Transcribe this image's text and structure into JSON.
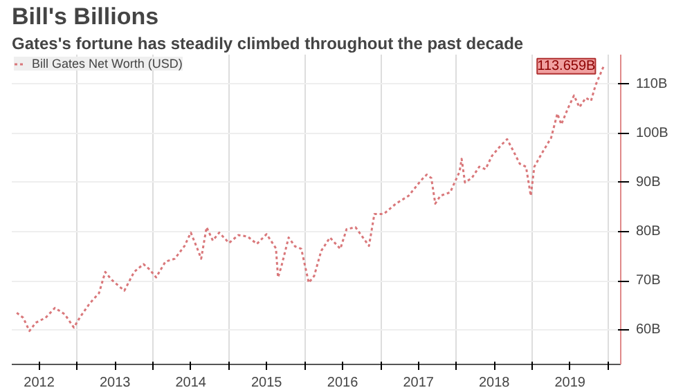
{
  "chart_data": {
    "type": "line",
    "title": "Bill's Billions",
    "subtitle": "Gates's fortune has steadily climbed throughout the past decade",
    "x": [
      "2012-03-15",
      "2012-04-15",
      "2012-05-15",
      "2012-06-15",
      "2012-08-01",
      "2012-09-15",
      "2012-11-01",
      "2012-12-15",
      "2013-01-15",
      "2013-03-01",
      "2013-04-15",
      "2013-05-15",
      "2013-06-15",
      "2013-07-15",
      "2013-08-15",
      "2013-10-01",
      "2013-11-15",
      "2013-12-15",
      "2014-01-15",
      "2014-03-01",
      "2014-04-15",
      "2014-06-01",
      "2014-07-01",
      "2014-08-01",
      "2014-08-20",
      "2014-09-15",
      "2014-10-15",
      "2014-11-15",
      "2015-01-01",
      "2015-02-15",
      "2015-04-01",
      "2015-05-15",
      "2015-07-01",
      "2015-08-15",
      "2015-08-25",
      "2015-09-10",
      "2015-10-15",
      "2015-11-15",
      "2015-12-15",
      "2016-01-20",
      "2016-02-15",
      "2016-03-20",
      "2016-05-01",
      "2016-06-20",
      "2016-07-20",
      "2016-09-01",
      "2016-11-05",
      "2016-12-01",
      "2017-01-15",
      "2017-03-15",
      "2017-05-15",
      "2017-07-15",
      "2017-08-10",
      "2017-09-01",
      "2017-09-20",
      "2017-10-15",
      "2017-12-01",
      "2018-01-15",
      "2018-01-25",
      "2018-02-10",
      "2018-03-15",
      "2018-04-20",
      "2018-05-20",
      "2018-06-20",
      "2018-08-01",
      "2018-09-01",
      "2018-10-01",
      "2018-11-01",
      "2018-12-01",
      "2018-12-24",
      "2019-01-10",
      "2019-02-15",
      "2019-04-01",
      "2019-05-01",
      "2019-05-20",
      "2019-06-20",
      "2019-07-20",
      "2019-08-15",
      "2019-09-15",
      "2019-10-10",
      "2019-11-01",
      "2019-12-10"
    ],
    "series": [
      {
        "name": "Bill Gates Net Worth (USD)",
        "color": "#d9777a",
        "values": [
          63.5,
          62.5,
          59.8,
          61.5,
          62.5,
          64.5,
          63.2,
          60.5,
          62.7,
          65.4,
          67.5,
          71.8,
          70.2,
          69.1,
          68,
          71.8,
          73.4,
          72.3,
          70.7,
          73.9,
          74.5,
          77.1,
          79.8,
          76.6,
          74.5,
          80.9,
          78.2,
          79.8,
          77.7,
          79.3,
          79,
          77.5,
          79.5,
          76.6,
          70.7,
          72.9,
          78.8,
          77,
          76.5,
          69.6,
          71,
          76.1,
          78.8,
          76.5,
          80.5,
          80.9,
          77.1,
          83.6,
          83.6,
          85.7,
          87.3,
          90.5,
          91.6,
          90.9,
          85.7,
          87.3,
          88,
          92.2,
          94.8,
          90,
          90.9,
          93.2,
          92.7,
          95.4,
          97.5,
          98.8,
          96.4,
          93.8,
          93.2,
          87.3,
          93.2,
          95.9,
          99.1,
          104,
          101.8,
          105,
          107.7,
          105.3,
          107.2,
          106.6,
          109.8,
          113.659
        ]
      }
    ],
    "xlim": [
      "2012-02-20",
      "2020-03-01"
    ],
    "xticks": [
      {
        "value": "2013-01-01",
        "label": null
      },
      {
        "value": "2014-01-01",
        "label": null
      },
      {
        "value": "2015-01-01",
        "label": null
      },
      {
        "value": "2016-01-01",
        "label": null
      },
      {
        "value": "2017-01-01",
        "label": null
      },
      {
        "value": "2018-01-01",
        "label": null
      },
      {
        "value": "2019-01-01",
        "label": null
      },
      {
        "value": "2020-01-01",
        "label": null
      },
      {
        "value": "2012-07-01",
        "label": "2012"
      },
      {
        "value": "2013-07-01",
        "label": "2013"
      },
      {
        "value": "2014-07-01",
        "label": "2014"
      },
      {
        "value": "2015-07-01",
        "label": "2015"
      },
      {
        "value": "2016-07-01",
        "label": "2016"
      },
      {
        "value": "2017-07-01",
        "label": "2017"
      },
      {
        "value": "2018-07-01",
        "label": "2018"
      },
      {
        "value": "2019-07-01",
        "label": "2019"
      }
    ],
    "ylim": [
      53,
      116
    ],
    "yticks": [
      {
        "value": 60,
        "label": "60B"
      },
      {
        "value": 70,
        "label": "70B"
      },
      {
        "value": 80,
        "label": "80B"
      },
      {
        "value": 90,
        "label": "90B"
      },
      {
        "value": 100,
        "label": "100B"
      },
      {
        "value": 110,
        "label": "110B"
      }
    ],
    "annotations": [
      {
        "text": "113.659B",
        "x": "2019-12-10",
        "y": 113.659
      }
    ],
    "grid": true,
    "legend": "top left",
    "line_style": "dotted",
    "marker": "none"
  }
}
